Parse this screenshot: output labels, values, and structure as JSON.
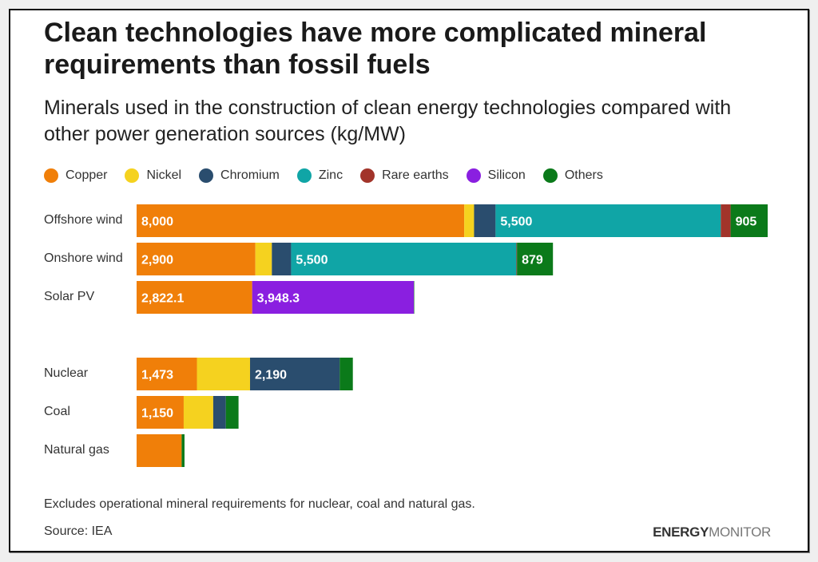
{
  "chart_data": {
    "type": "bar",
    "orientation": "horizontal",
    "stacked": true,
    "title": "Clean technologies have more complicated mineral requirements than fossil fuels",
    "subtitle": "Minerals used in the construction of clean energy technologies compared with other power generation sources (kg/MW)",
    "categories": [
      "Offshore wind",
      "Onshore wind",
      "Solar PV",
      "Nuclear",
      "Coal",
      "Natural gas"
    ],
    "series": [
      {
        "name": "Copper",
        "color": "#f07f09",
        "values": [
          8000,
          2900,
          2822.1,
          1473,
          1150,
          1100
        ]
      },
      {
        "name": "Nickel",
        "color": "#f5d21f",
        "values": [
          240,
          403,
          0,
          1297,
          721,
          0
        ]
      },
      {
        "name": "Chromium",
        "color": "#2a4d6e",
        "values": [
          525,
          470,
          0,
          2190,
          308,
          0
        ]
      },
      {
        "name": "Zinc",
        "color": "#10a5a6",
        "values": [
          5500,
          5500,
          0,
          0,
          0,
          0
        ]
      },
      {
        "name": "Rare earths",
        "color": "#a2342a",
        "values": [
          239,
          14,
          0,
          0,
          0,
          0
        ]
      },
      {
        "name": "Silicon",
        "color": "#8a1fe0",
        "values": [
          0,
          0,
          3948.3,
          0,
          0,
          0
        ]
      },
      {
        "name": "Others",
        "color": "#0b7a1a",
        "values": [
          905,
          879,
          10,
          320,
          310,
          70
        ]
      }
    ],
    "data_labels": [
      [
        "8,000",
        "",
        "",
        "5,500",
        "",
        "",
        "905"
      ],
      [
        "2,900",
        "",
        "",
        "5,500",
        "",
        "",
        "879"
      ],
      [
        "2,822.1",
        "",
        "",
        "",
        "",
        "3,948.3",
        ""
      ],
      [
        "1,473",
        "",
        "2,190",
        "",
        "",
        "",
        ""
      ],
      [
        "1,150",
        "",
        "",
        "",
        "",
        "",
        ""
      ],
      [
        "",
        "",
        "",
        "",
        "",
        "",
        ""
      ]
    ],
    "xlim": [
      0,
      15500
    ],
    "grid": false,
    "legend_position": "top-left",
    "group_gap_after": "Solar PV"
  },
  "footer": {
    "note": "Excludes operational mineral requirements for nuclear, coal and natural gas.",
    "source": "Source: IEA",
    "logo_bold": "ENERGY",
    "logo_light": "MONITOR"
  }
}
